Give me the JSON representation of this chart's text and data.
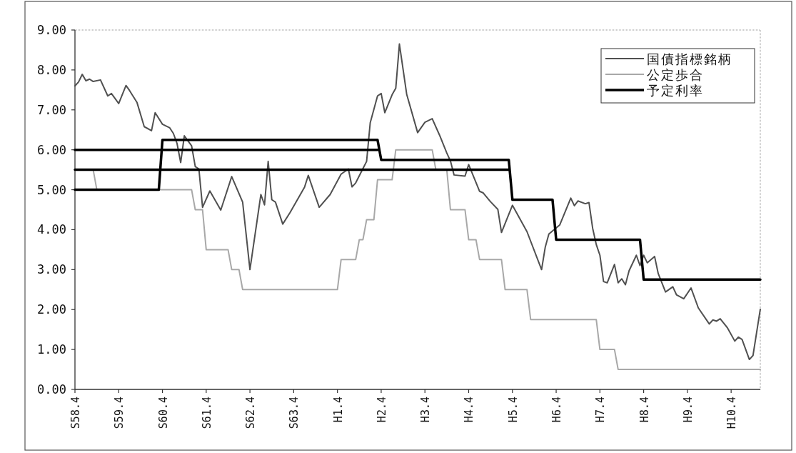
{
  "chart_data": {
    "type": "line",
    "legend": "top right",
    "ylim": [
      0,
      9
    ],
    "categories": [
      "S58.4",
      null,
      null,
      null,
      null,
      null,
      null,
      null,
      null,
      null,
      null,
      null,
      "S59.4",
      null,
      null,
      null,
      null,
      null,
      null,
      null,
      null,
      null,
      null,
      null,
      "S60.4",
      null,
      null,
      null,
      null,
      null,
      null,
      null,
      null,
      null,
      null,
      null,
      "S61.4",
      null,
      null,
      null,
      null,
      null,
      null,
      null,
      null,
      null,
      null,
      null,
      "S62.4",
      null,
      null,
      null,
      null,
      null,
      null,
      null,
      null,
      null,
      null,
      null,
      "S63.4",
      null,
      null,
      null,
      null,
      null,
      null,
      null,
      null,
      null,
      null,
      null,
      "H1.4",
      null,
      null,
      null,
      null,
      null,
      null,
      null,
      null,
      null,
      null,
      null,
      "H2.4",
      null,
      null,
      null,
      null,
      null,
      null,
      null,
      null,
      null,
      null,
      null,
      "H3.4",
      null,
      null,
      null,
      null,
      null,
      null,
      null,
      null,
      null,
      null,
      null,
      "H4.4",
      null,
      null,
      null,
      null,
      null,
      null,
      null,
      null,
      null,
      null,
      null,
      "H5.4",
      null,
      null,
      null,
      null,
      null,
      null,
      null,
      null,
      null,
      null,
      null,
      "H6.4",
      null,
      null,
      null,
      null,
      null,
      null,
      null,
      null,
      null,
      null,
      null,
      "H7.4",
      null,
      null,
      null,
      null,
      null,
      null,
      null,
      null,
      null,
      null,
      null,
      "H8.4",
      null,
      null,
      null,
      null,
      null,
      null,
      null,
      null,
      null,
      null,
      null,
      "H9.4",
      null,
      null,
      null,
      null,
      null,
      null,
      null,
      null,
      null,
      null,
      null,
      "H10.4",
      null,
      null,
      null,
      null,
      null,
      null,
      null,
      null
    ],
    "yticks": [
      {
        "value": 0,
        "label": "0.00"
      },
      {
        "value": 1,
        "label": "1.00"
      },
      {
        "value": 2,
        "label": "2.00"
      },
      {
        "value": 3,
        "label": "3.00"
      },
      {
        "value": 4,
        "label": "4.00"
      },
      {
        "value": 5,
        "label": "5.00"
      },
      {
        "value": 6,
        "label": "6.00"
      },
      {
        "value": 7,
        "label": "7.00"
      },
      {
        "value": 8,
        "label": "8.00"
      },
      {
        "value": 9,
        "label": "9.00"
      }
    ],
    "series": [
      {
        "name": "国債指標銘柄",
        "color": "#505050",
        "values": [
          7.6,
          7.7,
          7.89,
          7.73,
          7.77,
          7.71,
          null,
          7.75,
          null,
          7.35,
          7.41,
          null,
          7.16,
          null,
          7.61,
          7.48,
          null,
          7.19,
          null,
          6.58,
          null,
          6.48,
          6.93,
          null,
          6.64,
          null,
          6.55,
          6.41,
          6.16,
          5.68,
          6.35,
          null,
          6.1,
          5.58,
          5.52,
          4.56,
          null,
          4.97,
          null,
          null,
          4.49,
          null,
          null,
          5.33,
          null,
          null,
          4.69,
          null,
          3.0,
          null,
          null,
          4.88,
          4.62,
          5.71,
          4.75,
          4.69,
          null,
          4.14,
          null,
          4.43,
          null,
          null,
          null,
          5.07,
          5.36,
          null,
          null,
          4.56,
          null,
          null,
          4.88,
          null,
          null,
          5.39,
          null,
          5.52,
          5.07,
          5.17,
          null,
          null,
          5.71,
          6.68,
          null,
          7.35,
          7.41,
          6.93,
          null,
          7.38,
          7.54,
          8.65,
          null,
          7.39,
          null,
          null,
          6.43,
          null,
          6.69,
          null,
          6.78,
          null,
          6.37,
          null,
          5.92,
          5.72,
          5.37,
          null,
          null,
          5.34,
          5.63,
          null,
          null,
          4.96,
          4.92,
          null,
          4.7,
          null,
          4.51,
          3.93,
          null,
          null,
          4.61,
          null,
          null,
          null,
          3.95,
          null,
          null,
          null,
          3.0,
          3.56,
          3.89,
          null,
          null,
          4.12,
          null,
          null,
          4.79,
          4.6,
          4.72,
          null,
          4.65,
          4.68,
          4.04,
          3.63,
          3.36,
          2.7,
          2.67,
          null,
          3.13,
          2.67,
          2.77,
          2.62,
          2.97,
          null,
          3.36,
          3.1,
          3.36,
          3.17,
          null,
          3.33,
          2.9,
          null,
          2.44,
          null,
          2.57,
          2.37,
          null,
          2.27,
          null,
          2.54,
          null,
          2.04,
          null,
          null,
          1.64,
          1.74,
          1.71,
          1.77,
          null,
          1.54,
          null,
          1.21,
          1.31,
          1.25,
          null,
          0.75,
          0.85,
          null,
          2.01
        ]
      },
      {
        "name": "公定歩合",
        "color": "#a8a8a8",
        "values": [
          5.5,
          null,
          null,
          null,
          null,
          5.5,
          5.0,
          null,
          null,
          null,
          null,
          null,
          null,
          null,
          null,
          null,
          null,
          null,
          null,
          null,
          null,
          null,
          null,
          null,
          null,
          null,
          null,
          null,
          null,
          null,
          null,
          null,
          5.0,
          4.5,
          null,
          4.5,
          3.5,
          null,
          null,
          null,
          null,
          null,
          3.5,
          3.0,
          null,
          3.0,
          2.5,
          null,
          null,
          null,
          null,
          null,
          null,
          null,
          null,
          null,
          null,
          null,
          null,
          null,
          null,
          null,
          null,
          null,
          null,
          null,
          null,
          null,
          null,
          null,
          null,
          null,
          2.5,
          3.25,
          null,
          null,
          null,
          3.25,
          3.75,
          3.75,
          4.25,
          null,
          4.25,
          5.25,
          null,
          null,
          null,
          5.25,
          6.0,
          null,
          null,
          null,
          null,
          null,
          null,
          null,
          null,
          null,
          6.0,
          5.5,
          null,
          null,
          5.5,
          4.5,
          null,
          null,
          null,
          4.5,
          3.75,
          null,
          3.75,
          3.25,
          null,
          null,
          null,
          null,
          null,
          3.25,
          2.5,
          null,
          null,
          null,
          null,
          null,
          2.5,
          1.75,
          null,
          null,
          null,
          null,
          null,
          null,
          null,
          null,
          null,
          null,
          null,
          null,
          null,
          null,
          null,
          null,
          null,
          1.75,
          1.0,
          null,
          null,
          null,
          1.0,
          0.5,
          null,
          null,
          null,
          null,
          null,
          null,
          null,
          null,
          null,
          null,
          null,
          null,
          null,
          null,
          null,
          null,
          null,
          null,
          null,
          null,
          null,
          null,
          null,
          null,
          null,
          null,
          null,
          null,
          null,
          null,
          null,
          null,
          null,
          null,
          null,
          null,
          null,
          null,
          0.5
        ]
      },
      {
        "name": "予定利率",
        "color": "#000000",
        "values": [
          5.0,
          null,
          null,
          null,
          null,
          null,
          null,
          null,
          null,
          null,
          null,
          null,
          null,
          null,
          null,
          null,
          null,
          null,
          null,
          null,
          null,
          null,
          null,
          5.0,
          6.25,
          null,
          null,
          null,
          null,
          null,
          null,
          null,
          null,
          null,
          null,
          null,
          null,
          null,
          null,
          null,
          null,
          null,
          null,
          null,
          null,
          null,
          null,
          null,
          null,
          null,
          null,
          null,
          null,
          null,
          null,
          null,
          null,
          null,
          null,
          null,
          null,
          null,
          null,
          null,
          null,
          null,
          null,
          null,
          null,
          null,
          null,
          null,
          null,
          null,
          null,
          null,
          null,
          null,
          null,
          null,
          null,
          null,
          null,
          6.25,
          5.75,
          null,
          null,
          null,
          null,
          null,
          null,
          null,
          null,
          null,
          null,
          null,
          null,
          null,
          null,
          null,
          null,
          null,
          null,
          null,
          null,
          null,
          null,
          null,
          null,
          null,
          null,
          null,
          null,
          null,
          null,
          null,
          null,
          null,
          null,
          5.75,
          4.75,
          null,
          null,
          null,
          null,
          null,
          null,
          null,
          null,
          null,
          null,
          4.75,
          3.75,
          null,
          null,
          null,
          null,
          null,
          null,
          null,
          null,
          null,
          null,
          null,
          null,
          null,
          null,
          null,
          null,
          null,
          null,
          null,
          null,
          null,
          null,
          3.75,
          2.75,
          null,
          null,
          null,
          null,
          null,
          null,
          null,
          null,
          null,
          null,
          null,
          null,
          null,
          null,
          null,
          null,
          null,
          null,
          null,
          null,
          null,
          null,
          null,
          null,
          null,
          null,
          null,
          null,
          null,
          null,
          null,
          2.75
        ]
      },
      {
        "color": "#000000",
        "values": [
          6.0,
          null,
          null,
          null,
          null,
          null,
          null,
          null,
          null,
          null,
          null,
          null,
          null,
          null,
          null,
          null,
          null,
          null,
          null,
          null,
          null,
          null,
          null,
          null,
          null,
          null,
          null,
          null,
          null,
          null,
          null,
          null,
          null,
          null,
          null,
          null,
          null,
          null,
          null,
          null,
          null,
          null,
          null,
          null,
          null,
          null,
          null,
          null,
          null,
          null,
          null,
          null,
          null,
          null,
          null,
          null,
          null,
          null,
          null,
          null,
          null,
          null,
          null,
          null,
          null,
          null,
          null,
          null,
          null,
          null,
          null,
          null,
          null,
          null,
          null,
          null,
          null,
          null,
          null,
          null,
          null,
          null,
          null,
          6.0,
          null,
          null,
          null,
          null,
          null,
          null,
          null,
          null,
          null,
          null,
          null,
          null,
          null,
          null,
          null,
          null,
          null,
          null,
          null,
          null,
          null,
          null,
          null,
          null,
          null,
          null,
          null,
          null,
          null,
          null,
          null,
          null,
          null,
          null,
          null,
          null,
          null,
          null,
          null,
          null,
          null,
          null,
          null,
          null,
          null,
          null,
          null,
          null,
          null,
          null,
          null,
          null,
          null,
          null,
          null,
          null,
          null,
          null,
          null,
          null,
          null,
          null,
          null,
          null,
          null,
          null,
          null,
          null,
          null,
          null,
          null,
          null,
          null,
          null,
          null,
          null,
          null,
          null,
          null,
          null,
          null,
          null,
          null,
          null,
          null,
          null,
          null,
          null,
          null,
          null,
          null,
          null,
          null,
          null,
          null,
          null,
          null,
          null,
          null,
          null,
          null,
          null,
          null,
          null,
          null
        ]
      },
      {
        "color": "#000000",
        "values": [
          5.5,
          null,
          null,
          null,
          null,
          null,
          null,
          null,
          null,
          null,
          null,
          null,
          null,
          null,
          null,
          null,
          null,
          null,
          null,
          null,
          null,
          null,
          null,
          null,
          null,
          null,
          null,
          null,
          null,
          null,
          null,
          null,
          null,
          null,
          null,
          null,
          null,
          null,
          null,
          null,
          null,
          null,
          null,
          null,
          null,
          null,
          null,
          null,
          null,
          null,
          null,
          null,
          null,
          null,
          null,
          null,
          null,
          null,
          null,
          null,
          null,
          null,
          null,
          null,
          null,
          null,
          null,
          null,
          null,
          null,
          null,
          null,
          null,
          null,
          null,
          null,
          null,
          null,
          null,
          null,
          null,
          null,
          null,
          null,
          null,
          null,
          null,
          null,
          null,
          null,
          null,
          null,
          null,
          null,
          null,
          null,
          null,
          null,
          null,
          null,
          null,
          null,
          null,
          null,
          null,
          null,
          null,
          null,
          null,
          null,
          null,
          null,
          null,
          null,
          null,
          null,
          null,
          null,
          null,
          5.5,
          null,
          null,
          null,
          null,
          null,
          null,
          null,
          null,
          null,
          null,
          null,
          null,
          null,
          null,
          null,
          null,
          null,
          null,
          null,
          null,
          null,
          null,
          null,
          null,
          null,
          null,
          null,
          null,
          null,
          null,
          null,
          null,
          null,
          null,
          null,
          null,
          null,
          null,
          null,
          null,
          null,
          null,
          null,
          null,
          null,
          null,
          null,
          null,
          null,
          null,
          null,
          null,
          null,
          null,
          null,
          null,
          null,
          null,
          null,
          null,
          null,
          null,
          null,
          null,
          null,
          null,
          null,
          null,
          null
        ]
      }
    ]
  }
}
